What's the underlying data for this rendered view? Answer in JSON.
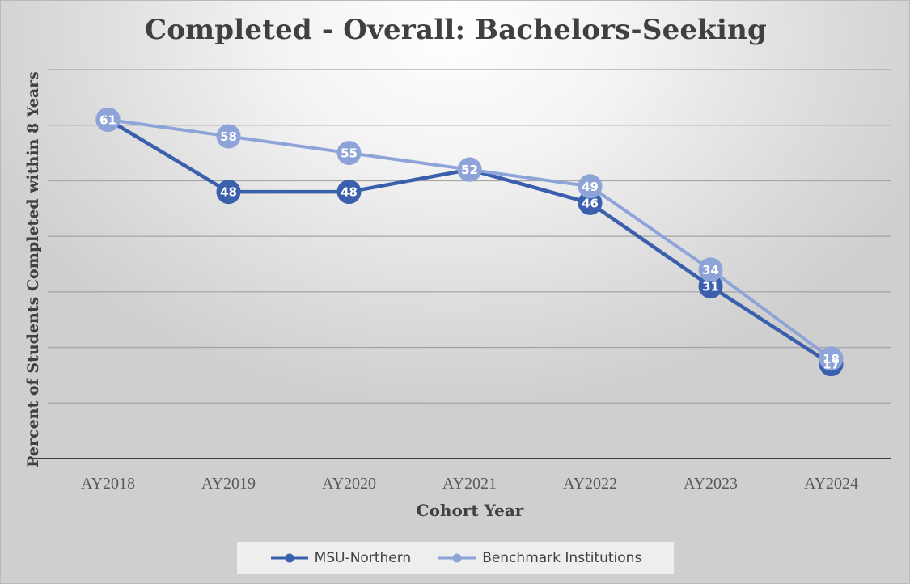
{
  "chart_data": {
    "type": "line",
    "title": "Completed - Overall: Bachelors-Seeking",
    "xlabel": "Cohort Year",
    "ylabel": "Percent of  Students Completed within 8 Years",
    "categories": [
      "AY2018",
      "AY2019",
      "AY2020",
      "AY2021",
      "AY2022",
      "AY2023",
      "AY2024"
    ],
    "ylim": [
      0,
      70
    ],
    "grid": true,
    "legend_position": "bottom",
    "series": [
      {
        "name": "MSU-Northern",
        "color": "#3a5fad",
        "values": [
          61,
          48,
          48,
          52,
          46,
          31,
          17
        ],
        "labels": [
          "61",
          "48",
          "48",
          "52",
          "46",
          "31",
          "17"
        ]
      },
      {
        "name": "Benchmark Institutions",
        "color": "#8ea3d8",
        "values": [
          61,
          58,
          55,
          52,
          49,
          34,
          18
        ],
        "labels": [
          "61",
          "58",
          "55",
          "52",
          "49",
          "34",
          "18"
        ]
      }
    ]
  }
}
